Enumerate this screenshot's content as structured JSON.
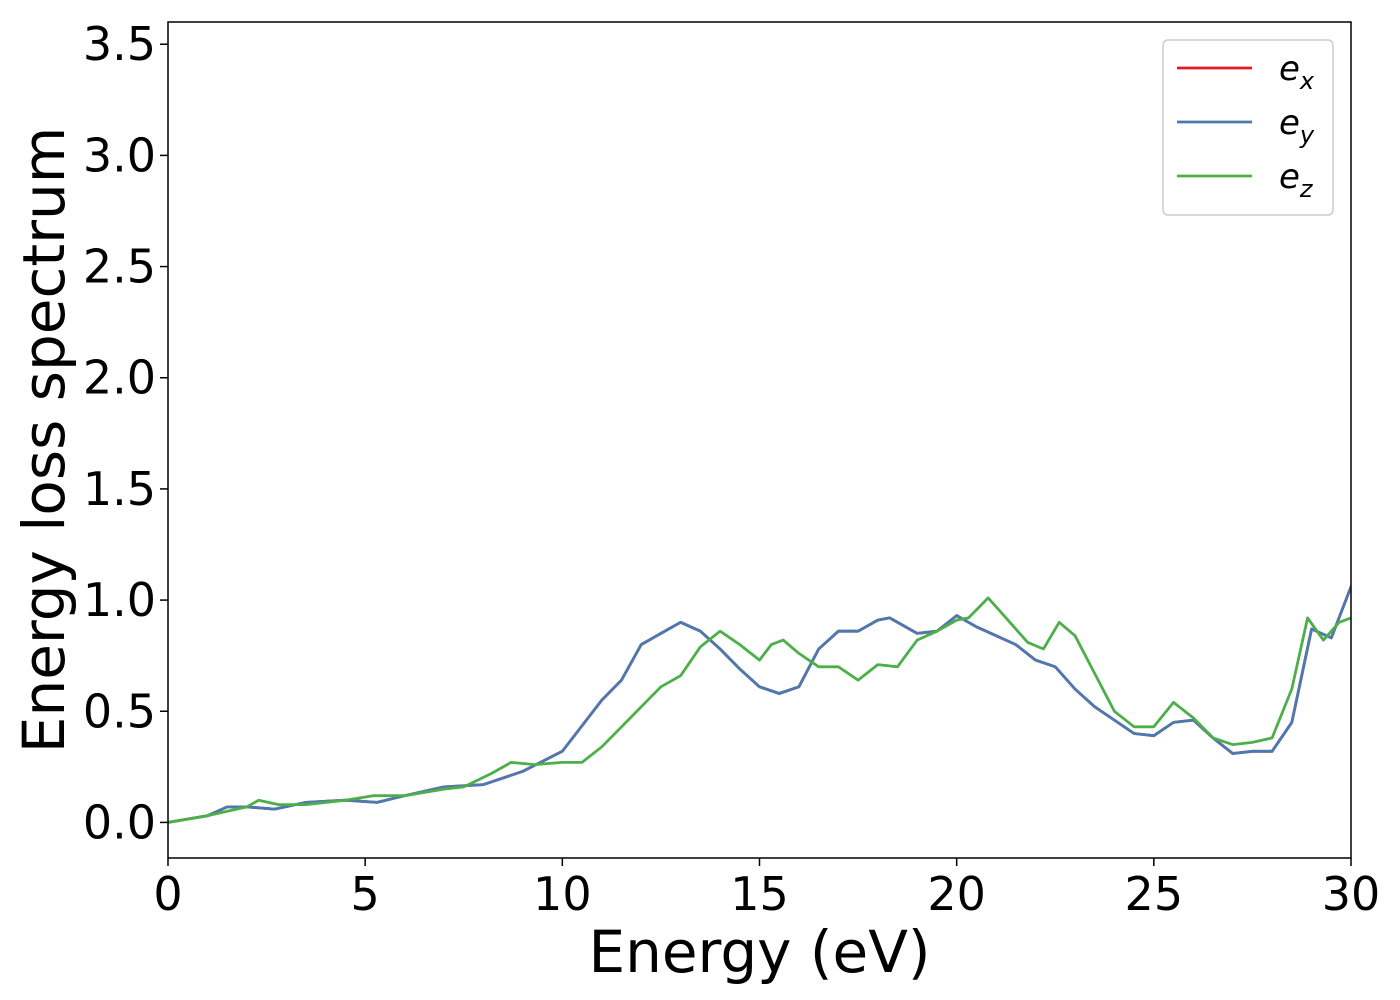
{
  "chart_data": {
    "type": "line",
    "xlabel": "Energy (eV)",
    "ylabel": "Energy loss spectrum",
    "xlim": [
      0,
      30
    ],
    "ylim": [
      -0.16,
      3.6
    ],
    "xticks": [
      0,
      5,
      10,
      15,
      20,
      25,
      30
    ],
    "xtick_labels": [
      "0",
      "5",
      "10",
      "15",
      "20",
      "25",
      "30"
    ],
    "yticks": [
      0.0,
      0.5,
      1.0,
      1.5,
      2.0,
      2.5,
      3.0,
      3.5
    ],
    "ytick_labels": [
      "0.0",
      "0.5",
      "1.0",
      "1.5",
      "2.0",
      "2.5",
      "3.0",
      "3.5"
    ],
    "grid": false,
    "legend_position": "top-right",
    "series": [
      {
        "name": "e_x",
        "label_base": "e",
        "label_sub": "x",
        "color": "#e41a1c",
        "x": [
          0,
          1,
          1.5,
          2,
          2.7,
          3.5,
          4.5,
          5.3,
          6,
          7,
          8,
          9,
          10,
          11,
          11.5,
          12,
          12.5,
          13,
          13.5,
          14,
          14.5,
          15,
          15.5,
          16,
          16.5,
          17,
          17.5,
          18,
          18.3,
          19,
          19.5,
          20,
          20.5,
          21,
          21.5,
          22,
          22.5,
          23,
          23.5,
          24,
          24.5,
          25,
          25.5,
          26,
          26.5,
          27,
          27.5,
          28,
          28.5,
          29,
          29.5,
          30
        ],
        "y": [
          0.0,
          0.03,
          0.07,
          0.07,
          0.06,
          0.09,
          0.1,
          0.09,
          0.12,
          0.16,
          0.17,
          0.23,
          0.32,
          0.55,
          0.64,
          0.8,
          0.85,
          0.9,
          0.86,
          0.78,
          0.69,
          0.61,
          0.58,
          0.61,
          0.78,
          0.86,
          0.86,
          0.91,
          0.92,
          0.85,
          0.86,
          0.93,
          0.88,
          0.84,
          0.8,
          0.73,
          0.7,
          0.6,
          0.52,
          0.46,
          0.4,
          0.39,
          0.45,
          0.46,
          0.38,
          0.31,
          0.32,
          0.32,
          0.45,
          0.87,
          0.83,
          1.06
        ]
      },
      {
        "name": "e_y",
        "label_base": "e",
        "label_sub": "y",
        "color": "#4a7ab0",
        "x": [
          0,
          1,
          1.5,
          2,
          2.7,
          3.5,
          4.5,
          5.3,
          6,
          7,
          8,
          9,
          10,
          11,
          11.5,
          12,
          12.5,
          13,
          13.5,
          14,
          14.5,
          15,
          15.5,
          16,
          16.5,
          17,
          17.5,
          18,
          18.3,
          19,
          19.5,
          20,
          20.5,
          21,
          21.5,
          22,
          22.5,
          23,
          23.5,
          24,
          24.5,
          25,
          25.5,
          26,
          26.5,
          27,
          27.5,
          28,
          28.5,
          29,
          29.5,
          30
        ],
        "y": [
          0.0,
          0.03,
          0.07,
          0.07,
          0.06,
          0.09,
          0.1,
          0.09,
          0.12,
          0.16,
          0.17,
          0.23,
          0.32,
          0.55,
          0.64,
          0.8,
          0.85,
          0.9,
          0.86,
          0.78,
          0.69,
          0.61,
          0.58,
          0.61,
          0.78,
          0.86,
          0.86,
          0.91,
          0.92,
          0.85,
          0.86,
          0.93,
          0.88,
          0.84,
          0.8,
          0.73,
          0.7,
          0.6,
          0.52,
          0.46,
          0.4,
          0.39,
          0.45,
          0.46,
          0.38,
          0.31,
          0.32,
          0.32,
          0.45,
          0.87,
          0.83,
          1.06
        ]
      },
      {
        "name": "e_z",
        "label_base": "e",
        "label_sub": "z",
        "color": "#4daf4a",
        "x": [
          0,
          1,
          1.5,
          2,
          2.3,
          2.8,
          3.5,
          4.5,
          5.2,
          6,
          7,
          7.5,
          8.2,
          8.7,
          9.3,
          10,
          10.5,
          11,
          11.5,
          12,
          12.5,
          13,
          13.5,
          14,
          14.5,
          15,
          15.3,
          15.6,
          16,
          16.5,
          17,
          17.5,
          18,
          18.5,
          19,
          19.5,
          20,
          20.3,
          20.8,
          21.3,
          21.8,
          22.2,
          22.6,
          23,
          23.5,
          24,
          24.5,
          25,
          25.5,
          26,
          26.5,
          27,
          27.5,
          28,
          28.5,
          28.9,
          29.3,
          29.7,
          30
        ],
        "y": [
          0.0,
          0.03,
          0.05,
          0.07,
          0.1,
          0.08,
          0.08,
          0.1,
          0.12,
          0.12,
          0.15,
          0.16,
          0.22,
          0.27,
          0.26,
          0.27,
          0.27,
          0.34,
          0.43,
          0.52,
          0.61,
          0.66,
          0.79,
          0.86,
          0.8,
          0.73,
          0.8,
          0.82,
          0.76,
          0.7,
          0.7,
          0.64,
          0.71,
          0.7,
          0.82,
          0.86,
          0.91,
          0.92,
          1.01,
          0.91,
          0.81,
          0.78,
          0.9,
          0.84,
          0.67,
          0.5,
          0.43,
          0.43,
          0.54,
          0.47,
          0.38,
          0.35,
          0.36,
          0.38,
          0.6,
          0.92,
          0.82,
          0.9,
          0.92
        ]
      }
    ]
  }
}
